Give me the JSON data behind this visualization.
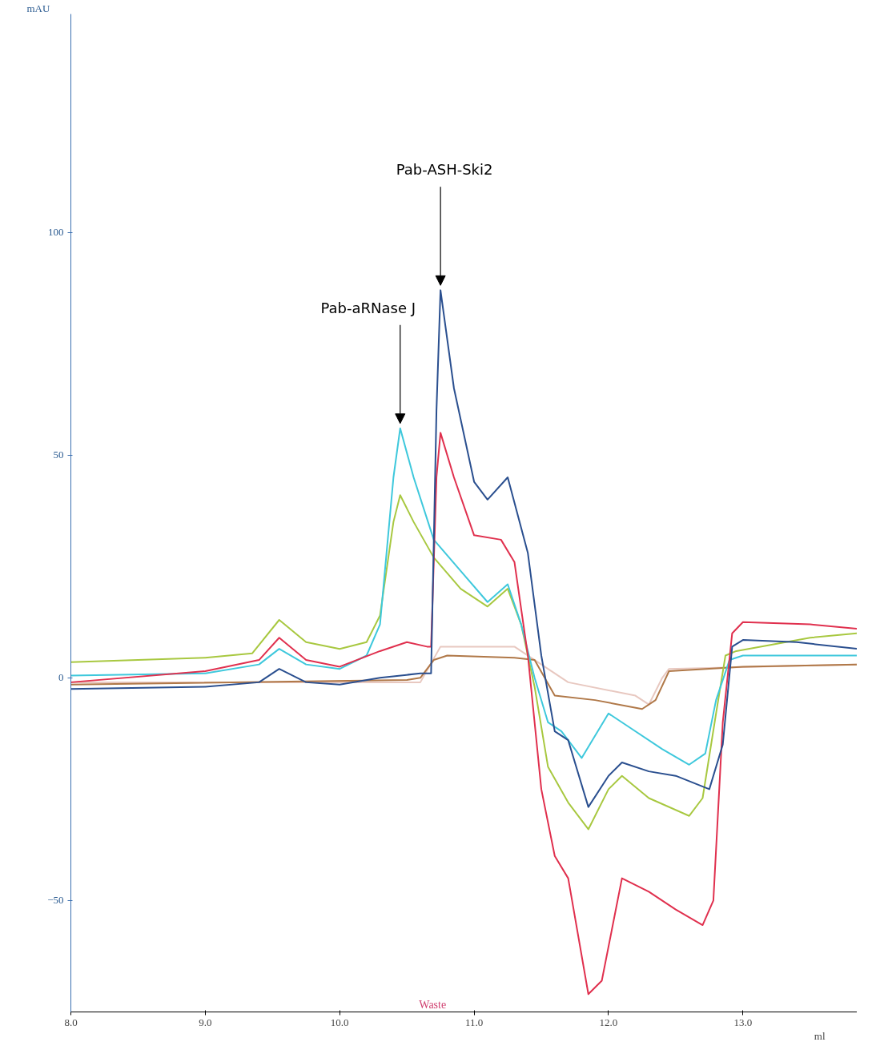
{
  "chart_data": {
    "type": "line",
    "xlabel": "ml",
    "ylabel": "mAU",
    "xlim": [
      8.0,
      13.85
    ],
    "ylim": [
      -75,
      149
    ],
    "xticks": [
      {
        "value": 8,
        "label": "8.0"
      },
      {
        "value": 9,
        "label": "9.0"
      },
      {
        "value": 10,
        "label": "10.0"
      },
      {
        "value": 11,
        "label": "11.0"
      },
      {
        "value": 12,
        "label": "12.0"
      },
      {
        "value": 13,
        "label": "13.0"
      }
    ],
    "yticks": [
      -50,
      0,
      50,
      100
    ],
    "grid": false,
    "marker": "none",
    "line_style": "solid",
    "annotations": [
      {
        "text": "Pab-aRNase J",
        "x": 10.45,
        "y": 56
      },
      {
        "text": "Pab-ASH-Ski2",
        "x": 10.75,
        "y": 87
      },
      "Waste"
    ],
    "series": [
      {
        "color": "#e8c8c0",
        "x": [
          8.0,
          10.6,
          10.75,
          11.3,
          11.5,
          11.7,
          12.2,
          12.3,
          12.4,
          12.45,
          13.85
        ],
        "values": [
          -1,
          -1,
          7,
          7,
          3,
          -1,
          -4,
          -6,
          0,
          2,
          3
        ]
      },
      {
        "color": "#b07848",
        "x": [
          8.0,
          10.5,
          10.6,
          10.7,
          10.8,
          11.3,
          11.45,
          11.6,
          11.9,
          12.25,
          12.35,
          12.45,
          13.0,
          13.85
        ],
        "values": [
          -1.5,
          -0.5,
          0,
          4,
          5,
          4.5,
          4,
          -4,
          -5,
          -7,
          -5,
          1.5,
          2.5,
          3
        ]
      },
      {
        "color": "#a8c840",
        "x": [
          8.0,
          9.0,
          9.35,
          9.55,
          9.75,
          10.0,
          10.2,
          10.3,
          10.4,
          10.45,
          10.55,
          10.7,
          10.9,
          11.1,
          11.25,
          11.35,
          11.45,
          11.55,
          11.7,
          11.85,
          12.0,
          12.1,
          12.3,
          12.6,
          12.7,
          12.8,
          12.87,
          12.95,
          13.5,
          13.85
        ],
        "values": [
          3.5,
          4.5,
          5.5,
          13,
          8,
          6.5,
          8,
          14,
          35,
          41,
          35,
          27,
          20,
          16,
          20,
          12,
          -2,
          -20,
          -28,
          -34,
          -25,
          -22,
          -27,
          -31,
          -27,
          -8,
          5,
          6,
          9,
          10
        ]
      },
      {
        "color": "#3ec8dc",
        "x": [
          8.0,
          9.0,
          9.4,
          9.55,
          9.75,
          10.0,
          10.2,
          10.3,
          10.4,
          10.45,
          10.55,
          10.7,
          10.9,
          11.1,
          11.25,
          11.35,
          11.45,
          11.55,
          11.65,
          11.8,
          12.0,
          12.15,
          12.4,
          12.6,
          12.72,
          12.8,
          12.9,
          13.0,
          13.5,
          13.85
        ],
        "values": [
          0.5,
          1,
          3,
          6.5,
          3,
          2,
          5,
          12,
          45,
          56,
          45,
          31,
          24,
          17,
          21,
          12,
          0,
          -10,
          -12,
          -18,
          -8,
          -11,
          -16,
          -19.5,
          -17,
          -5,
          4,
          5,
          5,
          5
        ]
      },
      {
        "color": "#e0304e",
        "x": [
          8.0,
          9.0,
          9.4,
          9.55,
          9.75,
          10.0,
          10.3,
          10.5,
          10.65,
          10.68,
          10.72,
          10.75,
          10.85,
          11.0,
          11.2,
          11.3,
          11.4,
          11.5,
          11.6,
          11.7,
          11.85,
          11.95,
          12.1,
          12.3,
          12.5,
          12.7,
          12.78,
          12.85,
          12.92,
          13.0,
          13.5,
          13.85
        ],
        "values": [
          -1,
          1.5,
          4,
          9,
          4,
          2.5,
          6,
          8,
          7,
          7,
          45,
          55,
          45,
          32,
          31,
          26,
          5,
          -25,
          -40,
          -45,
          -71,
          -68,
          -45,
          -48,
          -52,
          -55.5,
          -50,
          -10,
          10,
          12.5,
          12,
          11
        ]
      },
      {
        "color": "#2a4f8f",
        "x": [
          8.0,
          9.0,
          9.4,
          9.55,
          9.75,
          10.0,
          10.3,
          10.6,
          10.68,
          10.72,
          10.75,
          10.85,
          11.0,
          11.1,
          11.25,
          11.4,
          11.5,
          11.6,
          11.7,
          11.85,
          12.0,
          12.1,
          12.3,
          12.5,
          12.75,
          12.85,
          12.92,
          13.0,
          13.4,
          13.85
        ],
        "values": [
          -2.5,
          -2,
          -1,
          2,
          -1,
          -1.5,
          0,
          1,
          1,
          60,
          87,
          65,
          44,
          40,
          45,
          28,
          5,
          -12,
          -14,
          -29,
          -22,
          -19,
          -21,
          -22,
          -25,
          -15,
          7,
          8.5,
          8,
          6.5
        ]
      }
    ]
  }
}
